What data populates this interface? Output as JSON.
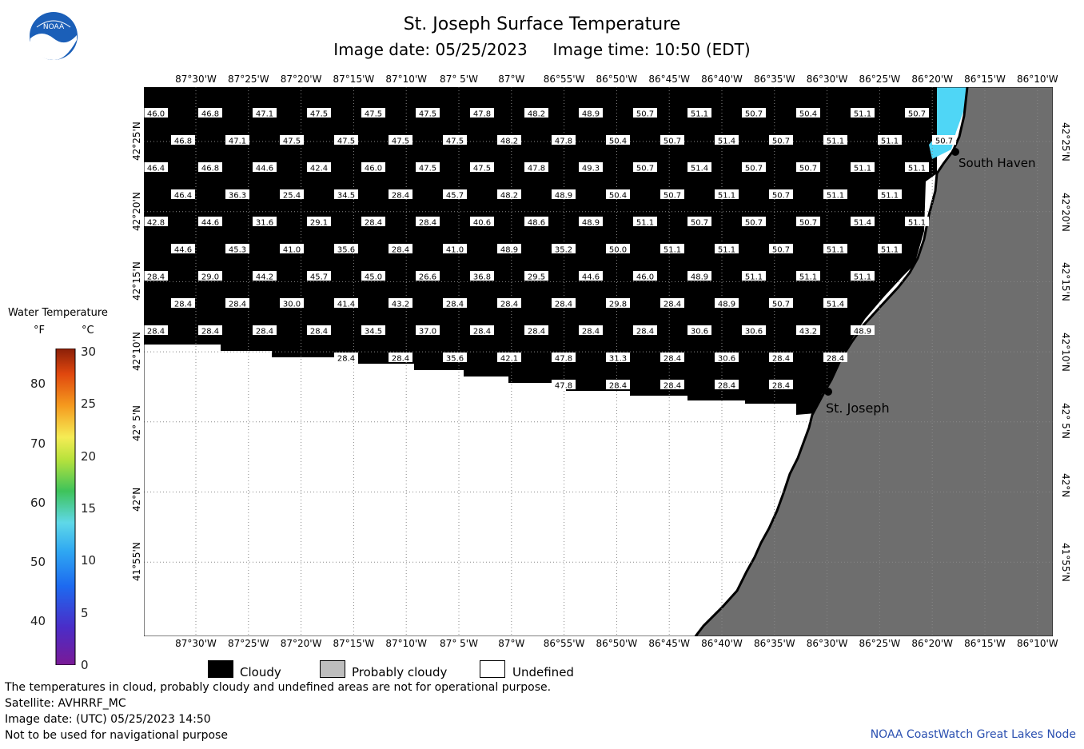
{
  "header": {
    "title": "St. Joseph Surface Temperature",
    "subtitle": "Image date: 05/25/2023     Image time: 10:50 (EDT)",
    "logo_text": "NOAA"
  },
  "map": {
    "lon_labels": [
      "87°30'W",
      "87°25'W",
      "87°20'W",
      "87°15'W",
      "87°10'W",
      "87° 5'W",
      "87°W",
      "86°55'W",
      "86°50'W",
      "86°45'W",
      "86°40'W",
      "86°35'W",
      "86°30'W",
      "86°25'W",
      "86°20'W",
      "86°15'W",
      "86°10'W"
    ],
    "lat_labels": [
      "42°25'N",
      "42°20'N",
      "42°15'N",
      "42°10'N",
      "42° 5'N",
      "42°N",
      "41°55'N"
    ],
    "places": [
      "South Haven",
      "St. Joseph"
    ],
    "colors": {
      "cloudy": "#000000",
      "land": "#6e6e6e",
      "undefined": "#ffffff",
      "water": "#4fd6f6"
    },
    "grid_rows": [
      [
        "46.0",
        "46.8",
        "47.1",
        "47.5",
        "47.5",
        "47.5",
        "47.8",
        "48.2",
        "48.9",
        "50.7",
        "51.1",
        "50.7",
        "50.4",
        "51.1",
        "50.7"
      ],
      [
        "46.8",
        "47.1",
        "47.5",
        "47.5",
        "47.5",
        "47.5",
        "48.2",
        "47.8",
        "50.4",
        "50.7",
        "51.4",
        "50.7",
        "51.1",
        "51.1",
        "50.7"
      ],
      [
        "46.4",
        "46.8",
        "44.6",
        "42.4",
        "46.0",
        "47.5",
        "47.5",
        "47.8",
        "49.3",
        "50.7",
        "51.4",
        "50.7",
        "50.7",
        "51.1",
        "51.1"
      ],
      [
        "46.4",
        "36.3",
        "25.4",
        "34.5",
        "28.4",
        "45.7",
        "48.2",
        "48.9",
        "50.4",
        "50.7",
        "51.1",
        "50.7",
        "51.1",
        "51.1"
      ],
      [
        "42.8",
        "44.6",
        "31.6",
        "29.1",
        "28.4",
        "28.4",
        "40.6",
        "48.6",
        "48.9",
        "51.1",
        "50.7",
        "50.7",
        "50.7",
        "51.4",
        "51.1"
      ],
      [
        "44.6",
        "45.3",
        "41.0",
        "35.6",
        "28.4",
        "41.0",
        "48.9",
        "35.2",
        "50.0",
        "51.1",
        "51.1",
        "50.7",
        "51.1",
        "51.1"
      ],
      [
        "28.4",
        "29.0",
        "44.2",
        "45.7",
        "45.0",
        "26.6",
        "36.8",
        "29.5",
        "44.6",
        "46.0",
        "48.9",
        "51.1",
        "51.1",
        "51.1"
      ],
      [
        "28.4",
        "28.4",
        "30.0",
        "41.4",
        "43.2",
        "28.4",
        "28.4",
        "28.4",
        "29.8",
        "28.4",
        "48.9",
        "50.7",
        "51.4"
      ],
      [
        "28.4",
        "28.4",
        "28.4",
        "28.4",
        "34.5",
        "37.0",
        "28.4",
        "28.4",
        "28.4",
        "28.4",
        "30.6",
        "30.6",
        "43.2",
        "48.9"
      ],
      [
        "28.4",
        "28.4",
        "35.6",
        "42.1",
        "47.8",
        "31.3",
        "28.4",
        "30.6",
        "28.4",
        "28.4"
      ],
      [
        "47.8",
        "28.4",
        "28.4",
        "28.4",
        "28.4"
      ]
    ]
  },
  "legend": {
    "title": "Water Temperature",
    "unit_f": "°F",
    "unit_c": "°C",
    "f_ticks": [
      "80",
      "70",
      "60",
      "50",
      "40"
    ],
    "c_ticks": [
      "30",
      "25",
      "20",
      "15",
      "10",
      "5",
      "0"
    ],
    "keys": [
      {
        "label": "Cloudy",
        "color": "#000000"
      },
      {
        "label": "Probably cloudy",
        "color": "#bdbdbd"
      },
      {
        "label": "Undefined",
        "color": "#ffffff"
      }
    ]
  },
  "footer": {
    "note": "The temperatures in cloud, probably cloudy and undefined areas are not for operational purpose.",
    "satellite": "Satellite: AVHRRF_MC",
    "utc_date": "Image date: (UTC) 05/25/2023  14:50",
    "nav": "Not to be used for navigational purpose",
    "credit": "NOAA CoastWatch Great Lakes Node"
  }
}
